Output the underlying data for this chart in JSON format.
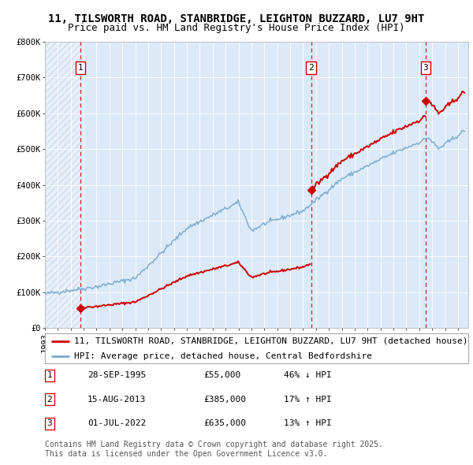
{
  "title1": "11, TILSWORTH ROAD, STANBRIDGE, LEIGHTON BUZZARD, LU7 9HT",
  "title2": "Price paid vs. HM Land Registry's House Price Index (HPI)",
  "ylim": [
    0,
    800000
  ],
  "yticks": [
    0,
    100000,
    200000,
    300000,
    400000,
    500000,
    600000,
    700000,
    800000
  ],
  "ytick_labels": [
    "£0",
    "£100K",
    "£200K",
    "£300K",
    "£400K",
    "£500K",
    "£600K",
    "£700K",
    "£800K"
  ],
  "xlim_start": 1993.0,
  "xlim_end": 2025.8,
  "bg_color": "#dce9f8",
  "hatch_color": "#b8c8d8",
  "grid_color": "#ffffff",
  "red_line_color": "#cc0000",
  "blue_line_color": "#7aaad0",
  "dashed_line_color": "#cc0000",
  "sale_points": [
    {
      "year": 1995.75,
      "price": 55000,
      "label": "1"
    },
    {
      "year": 2013.62,
      "price": 385000,
      "label": "2"
    },
    {
      "year": 2022.5,
      "price": 635000,
      "label": "3"
    }
  ],
  "legend_entries": [
    {
      "label": "11, TILSWORTH ROAD, STANBRIDGE, LEIGHTON BUZZARD, LU7 9HT (detached house)",
      "color": "#cc0000"
    },
    {
      "label": "HPI: Average price, detached house, Central Bedfordshire",
      "color": "#7aaad0"
    }
  ],
  "table_data": [
    {
      "num": "1",
      "date": "28-SEP-1995",
      "price": "£55,000",
      "hpi": "46% ↓ HPI"
    },
    {
      "num": "2",
      "date": "15-AUG-2013",
      "price": "£385,000",
      "hpi": "17% ↑ HPI"
    },
    {
      "num": "3",
      "date": "01-JUL-2022",
      "price": "£635,000",
      "hpi": "13% ↑ HPI"
    }
  ],
  "footnote": "Contains HM Land Registry data © Crown copyright and database right 2025.\nThis data is licensed under the Open Government Licence v3.0.",
  "title_fontsize": 10,
  "subtitle_fontsize": 9,
  "tick_fontsize": 7.5,
  "legend_fontsize": 8,
  "table_fontsize": 8,
  "footnote_fontsize": 7
}
